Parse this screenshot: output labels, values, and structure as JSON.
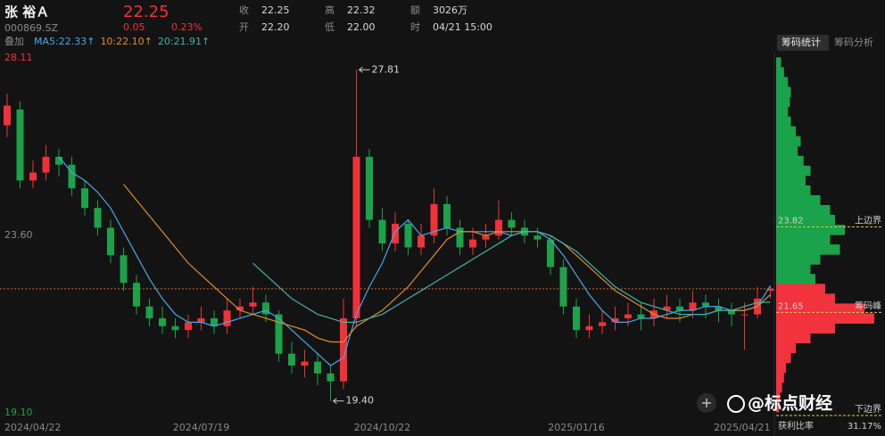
{
  "quote": {
    "name": "张 裕Ａ",
    "code": "000869.SZ",
    "price": "22.25",
    "change": "0.05",
    "change_pct": "0.23%",
    "fields": [
      {
        "label": "收",
        "value": "22.25"
      },
      {
        "label": "开",
        "value": "22.20"
      },
      {
        "label": "高",
        "value": "22.32"
      },
      {
        "label": "低",
        "value": "22.00"
      },
      {
        "label": "额",
        "value": "3026万"
      },
      {
        "label": "时",
        "value": "04/21 15:00"
      }
    ]
  },
  "overlay_button": "叠加",
  "tabs": [
    "筹码统计",
    "筹码分析"
  ],
  "watermark": "@标点财经",
  "chart_data": {
    "type": "candlestick",
    "categories": [
      "2024/04/22",
      null,
      null,
      null,
      null,
      null,
      null,
      null,
      null,
      null,
      null,
      null,
      null,
      null,
      null,
      "2024/07/19",
      null,
      null,
      null,
      null,
      null,
      null,
      null,
      null,
      null,
      null,
      null,
      null,
      null,
      "2024/10/22",
      null,
      null,
      null,
      null,
      null,
      null,
      null,
      null,
      null,
      null,
      null,
      null,
      null,
      null,
      "2025/01/16",
      null,
      null,
      null,
      null,
      null,
      null,
      null,
      null,
      null,
      null,
      null,
      null,
      null,
      null,
      "2025/04/21"
    ],
    "open": [
      26.4,
      26.8,
      25.0,
      25.2,
      25.6,
      25.4,
      24.8,
      24.3,
      23.8,
      23.1,
      22.4,
      21.8,
      21.5,
      21.3,
      21.2,
      21.4,
      21.5,
      21.3,
      21.7,
      21.8,
      21.9,
      21.6,
      20.6,
      20.3,
      20.4,
      20.1,
      19.9,
      21.5,
      25.6,
      24.0,
      23.4,
      23.9,
      23.3,
      23.6,
      24.4,
      23.8,
      23.3,
      23.5,
      23.6,
      24.0,
      23.8,
      23.6,
      23.5,
      22.8,
      21.8,
      21.2,
      21.3,
      21.4,
      21.5,
      21.6,
      21.5,
      21.7,
      21.8,
      21.7,
      21.9,
      21.8,
      21.7,
      21.6,
      21.6,
      22.2
    ],
    "high": [
      27.2,
      27.0,
      25.5,
      25.9,
      25.8,
      25.6,
      25.0,
      24.5,
      24.0,
      23.3,
      22.6,
      22.0,
      21.8,
      21.5,
      21.6,
      21.8,
      21.7,
      22.0,
      22.0,
      22.3,
      22.1,
      21.7,
      20.9,
      20.7,
      20.6,
      20.3,
      22.0,
      27.81,
      25.8,
      24.3,
      24.2,
      24.0,
      23.9,
      24.8,
      24.6,
      24.0,
      23.8,
      23.9,
      24.5,
      24.2,
      24.0,
      23.8,
      23.6,
      23.0,
      22.0,
      21.6,
      21.7,
      21.8,
      21.9,
      21.9,
      22.0,
      22.1,
      22.0,
      22.2,
      22.1,
      22.0,
      21.9,
      21.9,
      22.3,
      22.32
    ],
    "low": [
      26.1,
      24.8,
      24.8,
      25.0,
      25.1,
      24.6,
      24.1,
      23.6,
      22.9,
      22.2,
      21.6,
      21.3,
      21.1,
      21.0,
      21.0,
      21.2,
      21.1,
      21.1,
      21.5,
      21.6,
      21.4,
      20.4,
      20.1,
      20.0,
      19.8,
      19.4,
      19.7,
      21.3,
      23.8,
      23.2,
      23.2,
      23.1,
      23.1,
      23.4,
      23.6,
      23.1,
      23.1,
      23.3,
      23.5,
      23.6,
      23.4,
      23.3,
      22.6,
      21.6,
      21.0,
      21.0,
      21.1,
      21.2,
      21.3,
      21.2,
      21.3,
      21.5,
      21.4,
      21.5,
      21.5,
      21.4,
      21.3,
      20.7,
      21.5,
      22.0
    ],
    "close": [
      26.9,
      25.0,
      25.2,
      25.6,
      25.4,
      24.8,
      24.3,
      23.8,
      23.1,
      22.4,
      21.8,
      21.5,
      21.3,
      21.2,
      21.4,
      21.5,
      21.3,
      21.7,
      21.8,
      21.9,
      21.6,
      20.6,
      20.3,
      20.4,
      20.1,
      19.9,
      21.5,
      25.6,
      24.0,
      23.4,
      23.9,
      23.3,
      23.6,
      24.4,
      23.8,
      23.3,
      23.5,
      23.6,
      24.0,
      23.8,
      23.6,
      23.5,
      22.8,
      21.8,
      21.2,
      21.3,
      21.4,
      21.5,
      21.6,
      21.5,
      21.7,
      21.8,
      21.7,
      21.9,
      21.8,
      21.7,
      21.6,
      21.6,
      22.0,
      22.25
    ],
    "up_color": "#f0313a",
    "down_color": "#1ba24a",
    "ylim": [
      19.1,
      28.11
    ],
    "yticks": [
      28.11,
      {
        "value": 23.6,
        "label": "23.60"
      },
      {
        "value": 19.1,
        "label": "19.10"
      }
    ],
    "series": [
      {
        "name": "MA5:22.33↑",
        "color": "#46a8e8",
        "values": [
          null,
          null,
          null,
          null,
          25.6,
          25.2,
          25.0,
          24.7,
          24.3,
          23.7,
          23.1,
          22.5,
          22.0,
          21.6,
          21.4,
          21.4,
          21.3,
          21.4,
          21.5,
          21.6,
          21.7,
          21.5,
          21.2,
          20.9,
          20.6,
          20.3,
          20.5,
          21.6,
          22.3,
          22.9,
          23.7,
          24.0,
          23.6,
          23.7,
          23.8,
          23.7,
          23.7,
          23.7,
          23.7,
          23.6,
          23.7,
          23.7,
          23.5,
          23.1,
          22.6,
          22.1,
          21.7,
          21.4,
          21.4,
          21.5,
          21.5,
          21.6,
          21.7,
          21.7,
          21.8,
          21.8,
          21.7,
          21.7,
          21.8,
          22.33
        ]
      },
      {
        "name": "10:22.10↑",
        "color": "#e38b2c",
        "values": [
          null,
          null,
          null,
          null,
          null,
          null,
          null,
          null,
          null,
          24.9,
          24.5,
          24.1,
          23.7,
          23.3,
          22.9,
          22.6,
          22.3,
          22.0,
          21.7,
          21.6,
          21.5,
          21.4,
          21.3,
          21.2,
          21.0,
          20.9,
          20.9,
          21.3,
          21.5,
          21.7,
          22.0,
          22.3,
          22.7,
          23.1,
          23.5,
          23.7,
          23.7,
          23.6,
          23.7,
          23.7,
          23.7,
          23.7,
          23.6,
          23.4,
          23.1,
          22.8,
          22.5,
          22.2,
          22.0,
          21.8,
          21.6,
          21.5,
          21.5,
          21.6,
          21.6,
          21.7,
          21.7,
          21.7,
          21.8,
          22.1
        ]
      },
      {
        "name": "20:21.91↑",
        "color": "#40b3ad",
        "values": [
          null,
          null,
          null,
          null,
          null,
          null,
          null,
          null,
          null,
          null,
          null,
          null,
          null,
          null,
          null,
          null,
          null,
          null,
          null,
          22.9,
          22.6,
          22.3,
          22.0,
          21.8,
          21.6,
          21.5,
          21.4,
          21.4,
          21.5,
          21.6,
          21.8,
          22.0,
          22.2,
          22.4,
          22.6,
          22.8,
          23.0,
          23.2,
          23.4,
          23.6,
          23.7,
          23.7,
          23.6,
          23.4,
          23.2,
          22.9,
          22.6,
          22.3,
          22.1,
          21.9,
          21.8,
          21.7,
          21.6,
          21.6,
          21.6,
          21.7,
          21.7,
          21.8,
          21.9,
          21.91
        ]
      }
    ],
    "annotations": [
      {
        "field": "high",
        "value": 27.81,
        "label": "27.81"
      },
      {
        "field": "low",
        "value": 19.4,
        "label": "19.40"
      }
    ]
  },
  "chip_distribution": {
    "type": "bar",
    "prices": [
      28.0,
      27.75,
      27.5,
      27.25,
      27.0,
      26.75,
      26.5,
      26.25,
      26.0,
      25.75,
      25.5,
      25.25,
      25.0,
      24.75,
      24.5,
      24.25,
      24.0,
      23.75,
      23.5,
      23.25,
      23.0,
      22.75,
      22.5,
      22.25,
      22.0,
      21.75,
      21.5,
      21.25,
      21.0,
      20.75,
      20.5,
      20.25,
      20.0,
      19.75,
      19.5,
      19.25
    ],
    "values": [
      5,
      8,
      12,
      15,
      14,
      12,
      15,
      20,
      25,
      22,
      28,
      35,
      30,
      35,
      45,
      55,
      60,
      70,
      55,
      65,
      45,
      35,
      40,
      50,
      60,
      90,
      100,
      60,
      35,
      20,
      15,
      10,
      8,
      6,
      4,
      3
    ],
    "above_color": "#1aa34a",
    "below_color": "#f2323c",
    "markers": [
      {
        "value": 23.82,
        "label": "上边界"
      },
      {
        "value": 21.65,
        "label": "筹码峰"
      }
    ],
    "lower_label": "下边界",
    "profit_ratio_label": "获利比率",
    "profit_ratio": "31.17%"
  }
}
